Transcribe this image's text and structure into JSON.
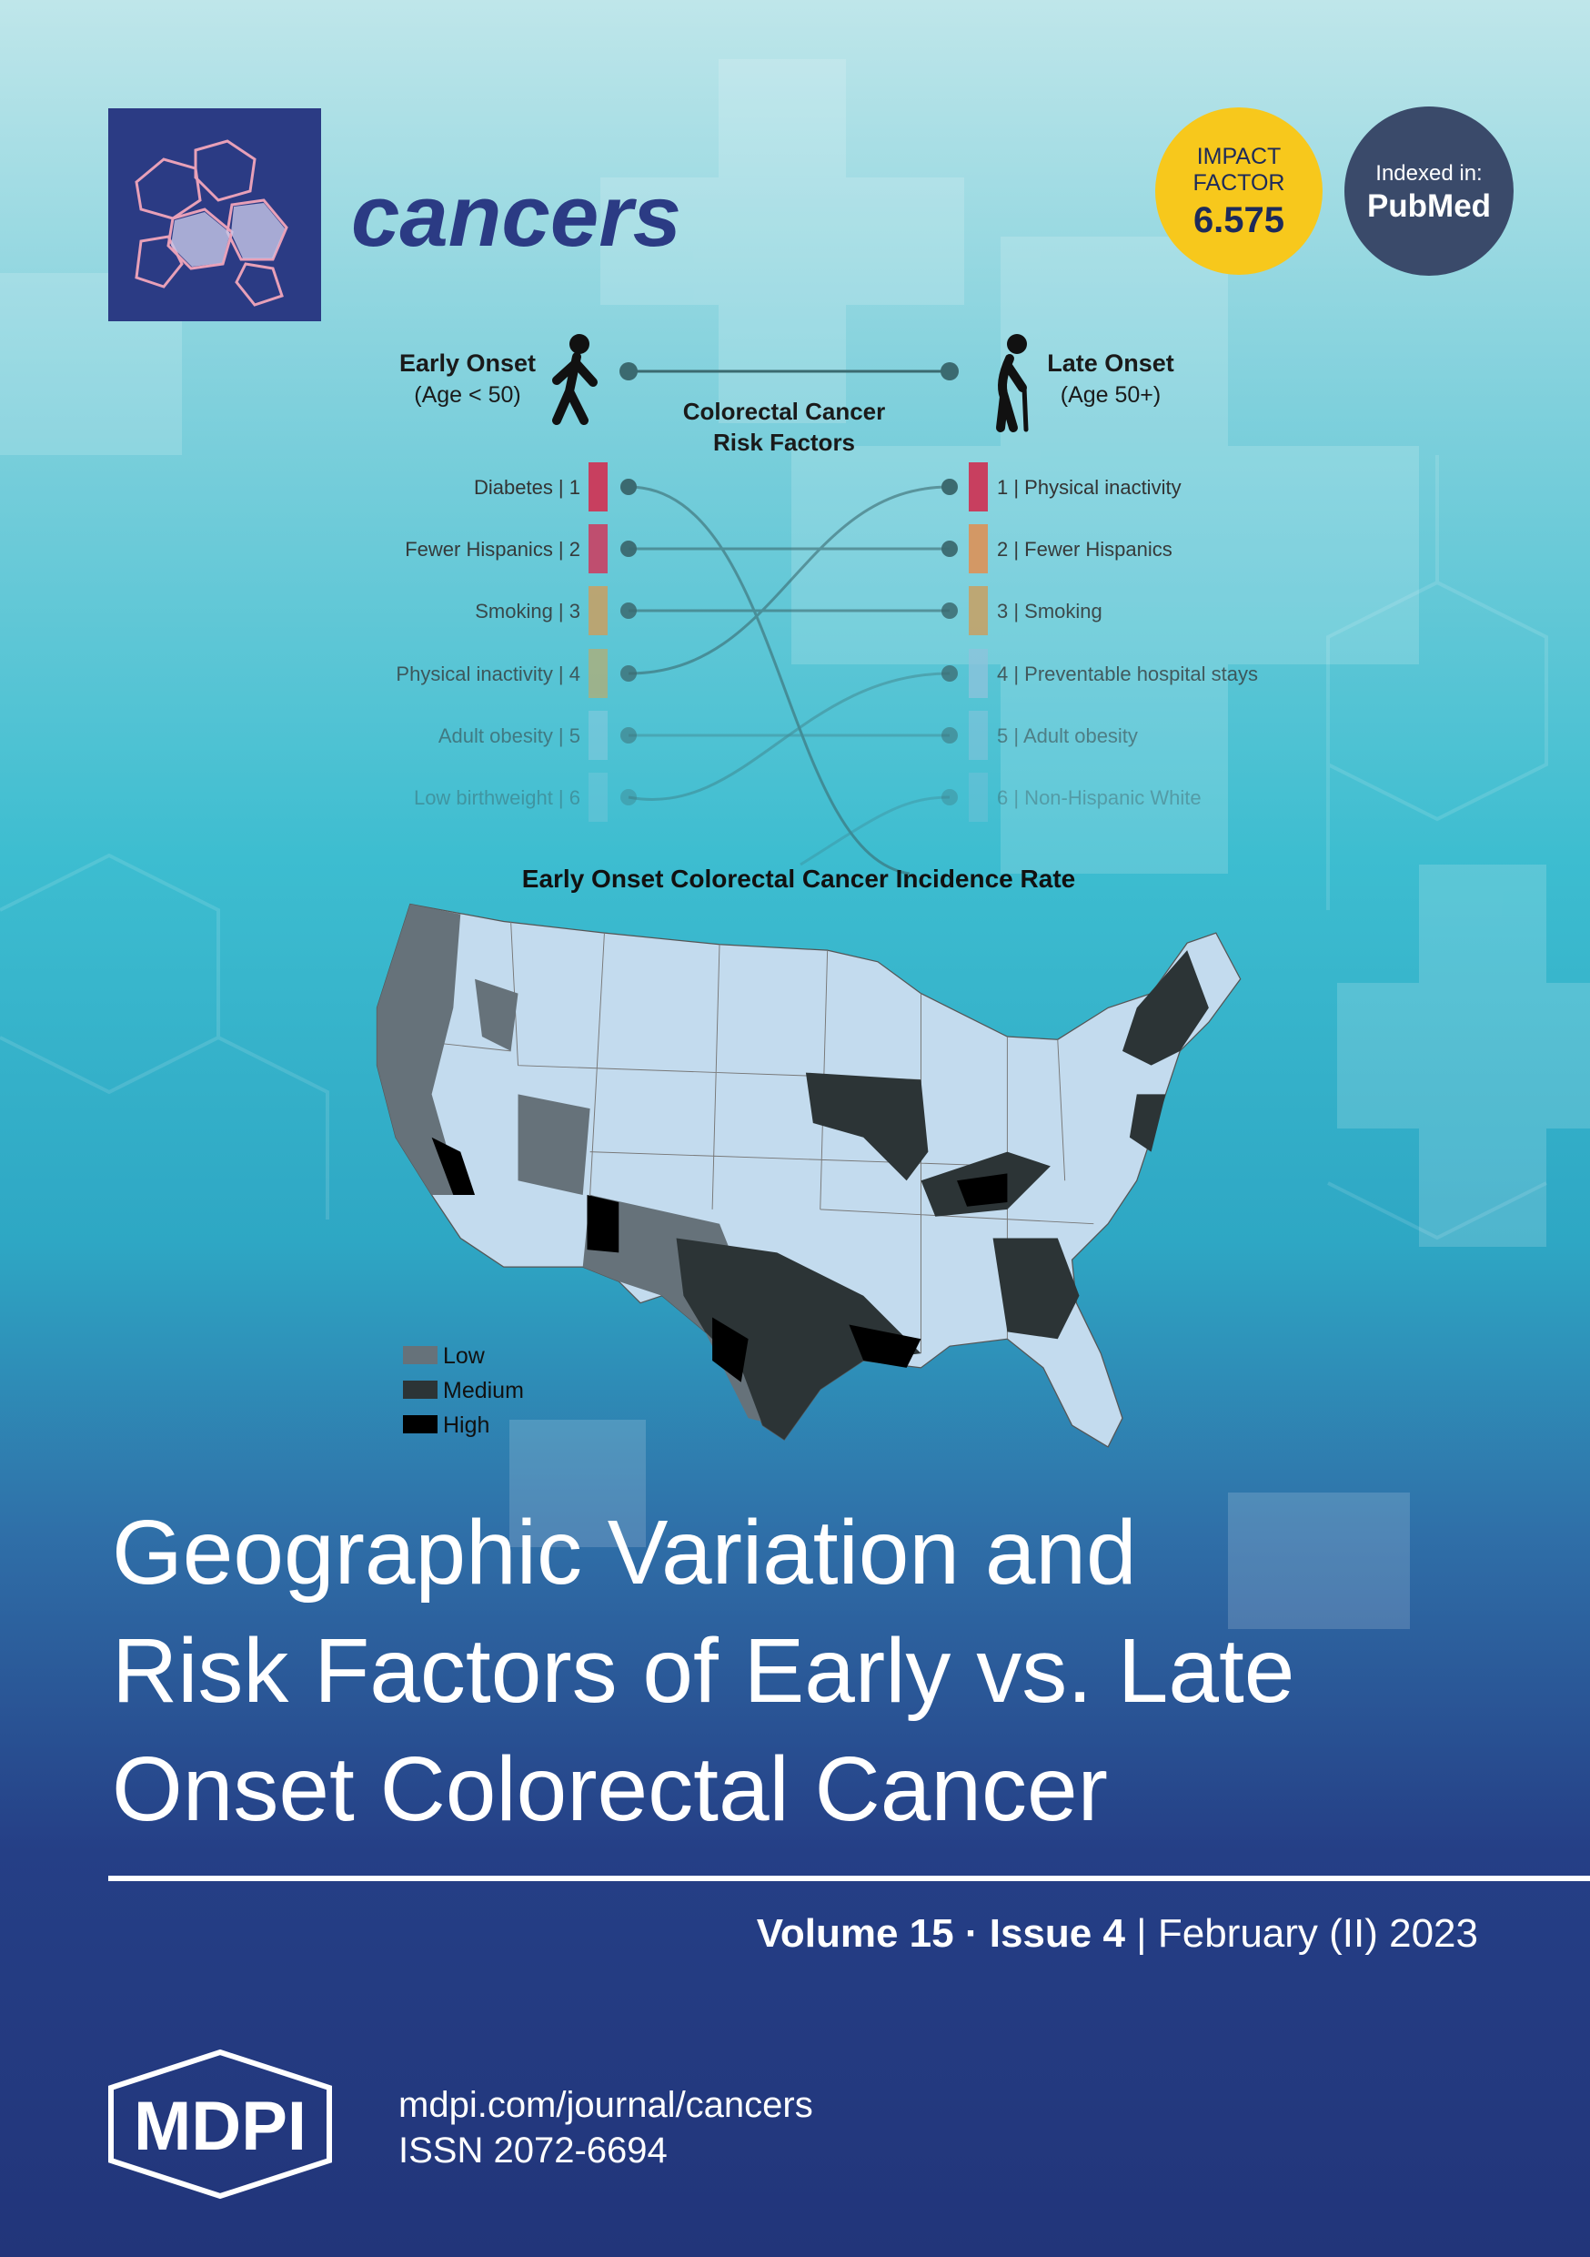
{
  "header": {
    "journal": "cancers",
    "impact_factor": {
      "label_1": "IMPACT",
      "label_2": "FACTOR",
      "value": "6.575"
    },
    "indexed": {
      "label": "Indexed in:",
      "name": "PubMed"
    }
  },
  "figure": {
    "early": {
      "title": "Early Onset",
      "subtitle": "(Age < 50)"
    },
    "late": {
      "title": "Late Onset",
      "subtitle": "(Age 50+)"
    },
    "center_title": [
      "Colorectal Cancer",
      "Risk Factors"
    ],
    "early_factors": [
      {
        "label": "Diabetes | 1",
        "color": "#c83f5f"
      },
      {
        "label": "Fewer Hispanics | 2",
        "color": "#c4486a"
      },
      {
        "label": "Smoking | 3",
        "color": "#c9a062"
      },
      {
        "label": "Physical inactivity | 4",
        "color": "#b4ad74"
      },
      {
        "label": "Adult obesity | 5",
        "color": "#8fcbe0"
      },
      {
        "label": "Low birthweight | 6",
        "color": "#8fcbe0"
      }
    ],
    "late_factors": [
      {
        "label": "1 | Physical inactivity",
        "color": "#c83f5f"
      },
      {
        "label": "2 | Fewer Hispanics",
        "color": "#d8955f"
      },
      {
        "label": "3 | Smoking",
        "color": "#c9a062"
      },
      {
        "label": "4 | Preventable hospital stays",
        "color": "#8ec3dc"
      },
      {
        "label": "5 | Adult obesity",
        "color": "#8ec3dc"
      },
      {
        "label": "6 | Non-Hispanic White",
        "color": "#8ec3dc"
      }
    ],
    "map": {
      "title": "Early Onset Colorectal Cancer Incidence Rate",
      "legend": [
        {
          "label": "Low",
          "color": "#66727a"
        },
        {
          "label": "Medium",
          "color": "#2c3436"
        },
        {
          "label": "High",
          "color": "#000000"
        }
      ]
    }
  },
  "article": {
    "title_lines": [
      "Geographic Variation and",
      "Risk Factors of Early vs. Late",
      "Onset Colorectal Cancer"
    ]
  },
  "issue": {
    "volume": "Volume 15",
    "separator_1": "·",
    "issue": "Issue 4",
    "separator_2": "|",
    "date": "February (II) 2023"
  },
  "footer": {
    "publisher": "MDPI",
    "url": "mdpi.com/journal/cancers",
    "issn": "ISSN 2072-6694"
  }
}
